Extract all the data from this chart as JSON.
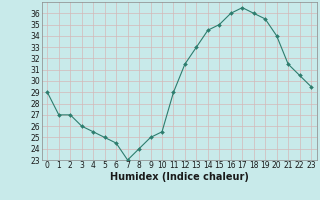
{
  "x": [
    0,
    1,
    2,
    3,
    4,
    5,
    6,
    7,
    8,
    9,
    10,
    11,
    12,
    13,
    14,
    15,
    16,
    17,
    18,
    19,
    20,
    21,
    22,
    23
  ],
  "y": [
    29.0,
    27.0,
    27.0,
    26.0,
    25.5,
    25.0,
    24.5,
    23.0,
    24.0,
    25.0,
    25.5,
    29.0,
    31.5,
    33.0,
    34.5,
    35.0,
    36.0,
    36.5,
    36.0,
    35.5,
    34.0,
    31.5,
    30.5,
    29.5
  ],
  "line_color": "#2d7d6e",
  "marker_color": "#2d7d6e",
  "bg_color": "#c8eaea",
  "grid_color_h": "#d4b8b8",
  "grid_color_v": "#d4b8b8",
  "xlabel": "Humidex (Indice chaleur)",
  "ylim": [
    23,
    37
  ],
  "xlim": [
    -0.5,
    23.5
  ],
  "yticks": [
    23,
    24,
    25,
    26,
    27,
    28,
    29,
    30,
    31,
    32,
    33,
    34,
    35,
    36
  ],
  "xticks": [
    0,
    1,
    2,
    3,
    4,
    5,
    6,
    7,
    8,
    9,
    10,
    11,
    12,
    13,
    14,
    15,
    16,
    17,
    18,
    19,
    20,
    21,
    22,
    23
  ],
  "tick_fontsize": 5.5,
  "xlabel_fontsize": 7.0,
  "spine_color": "#888888"
}
